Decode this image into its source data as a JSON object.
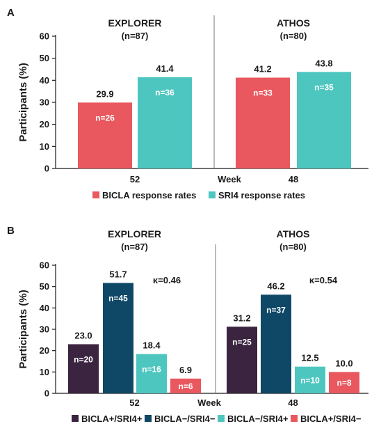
{
  "chart_data": [
    {
      "panel": "A",
      "type": "bar",
      "ylabel": "Participants (%)",
      "xlabel": "Week",
      "ylim": [
        0,
        60
      ],
      "yticks": [
        0,
        10,
        20,
        30,
        40,
        50,
        60
      ],
      "groups": [
        {
          "title": "EXPLORER",
          "n_label": "(n=87)",
          "week": "52",
          "kappa": ""
        },
        {
          "title": "ATHOS",
          "n_label": "(n=80)",
          "week": "48",
          "kappa": ""
        }
      ],
      "series": [
        {
          "name": "BICLA response rates",
          "color": "#e8585e",
          "values": [
            29.9,
            41.2
          ],
          "value_labels": [
            "29.9",
            "41.2"
          ],
          "n_labels": [
            "n=26",
            "n=33"
          ]
        },
        {
          "name": "SRI4 response rates",
          "color": "#4ec6c0",
          "values": [
            41.4,
            43.8
          ],
          "value_labels": [
            "41.4",
            "43.8"
          ],
          "n_labels": [
            "n=36",
            "n=35"
          ]
        }
      ]
    },
    {
      "panel": "B",
      "type": "bar",
      "ylabel": "Participants (%)",
      "xlabel": "Week",
      "ylim": [
        0,
        60
      ],
      "yticks": [
        0,
        10,
        20,
        30,
        40,
        50,
        60
      ],
      "groups": [
        {
          "title": "EXPLORER",
          "n_label": "(n=87)",
          "week": "52",
          "kappa": "κ=0.46"
        },
        {
          "title": "ATHOS",
          "n_label": "(n=80)",
          "week": "48",
          "kappa": "κ=0.54"
        }
      ],
      "series": [
        {
          "name": "BICLA+/SRI4+",
          "color": "#3b2440",
          "values": [
            23.0,
            31.2
          ],
          "value_labels": [
            "23.0",
            "31.2"
          ],
          "n_labels": [
            "n=20",
            "n=25"
          ]
        },
        {
          "name": "BICLA−/SRI4−",
          "color": "#0f4767",
          "values": [
            51.7,
            46.2
          ],
          "value_labels": [
            "51.7",
            "46.2"
          ],
          "n_labels": [
            "n=45",
            "n=37"
          ]
        },
        {
          "name": "BICLA−/SRI4+",
          "color": "#4ec6c0",
          "values": [
            18.4,
            12.5
          ],
          "value_labels": [
            "18.4",
            "12.5"
          ],
          "n_labels": [
            "n=16",
            "n=10"
          ]
        },
        {
          "name": "BICLA+/SRI4−",
          "color": "#e8585e",
          "values": [
            6.9,
            10.0
          ],
          "value_labels": [
            "6.9",
            "10.0"
          ],
          "n_labels": [
            "n=6",
            "n=8"
          ]
        }
      ]
    }
  ]
}
